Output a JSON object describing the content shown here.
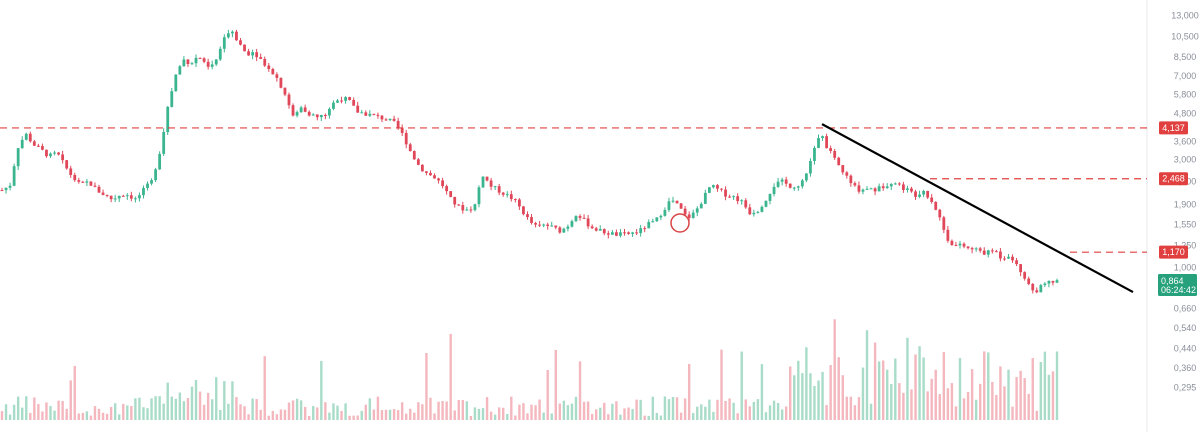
{
  "chart_data": {
    "type": "candlestick",
    "y_scale": "log",
    "y_ticks": [
      "13,000",
      "10,500",
      "8,500",
      "7,000",
      "5,800",
      "4,800",
      "3,600",
      "3,000",
      "2,400",
      "1,900",
      "1,550",
      "1,250",
      "1,000",
      "0,864",
      "0,660",
      "0,540",
      "0,440",
      "0,360",
      "0,295"
    ],
    "y_tick_values": [
      13.0,
      10.5,
      8.5,
      7.0,
      5.8,
      4.8,
      3.6,
      3.0,
      2.4,
      1.9,
      1.55,
      1.25,
      1.0,
      0.864,
      0.66,
      0.54,
      0.44,
      0.36,
      0.295
    ],
    "ylim": [
      0.25,
      14.0
    ],
    "levels": [
      {
        "label": "4,137",
        "value": 4.137,
        "style": "dashed",
        "color": "#e0403f"
      },
      {
        "label": "2,468",
        "value": 2.468,
        "style": "dashed",
        "color": "#e0403f"
      },
      {
        "label": "1,170",
        "value": 1.17,
        "style": "dashed",
        "color": "#e0403f"
      }
    ],
    "current_price": {
      "label": "0,864",
      "countdown": "06:24:42",
      "value": 0.864,
      "color": "#26a17b"
    },
    "trendline": {
      "from": 4.3,
      "to": 0.78,
      "color": "#000000"
    },
    "price_path": [
      [
        0,
        2.2
      ],
      [
        1,
        2.3
      ],
      [
        2,
        3.4
      ],
      [
        3,
        3.9
      ],
      [
        4,
        3.5
      ],
      [
        5,
        3.3
      ],
      [
        6,
        3.1
      ],
      [
        7,
        3.2
      ],
      [
        8,
        2.8
      ],
      [
        9,
        2.5
      ],
      [
        10,
        2.3
      ],
      [
        11,
        2.4
      ],
      [
        12,
        2.2
      ],
      [
        13,
        2.1
      ],
      [
        14,
        2.0
      ],
      [
        15,
        2.1
      ],
      [
        16,
        2.1
      ],
      [
        17,
        2.0
      ],
      [
        18,
        2.2
      ],
      [
        19,
        2.4
      ],
      [
        20,
        3.2
      ],
      [
        21,
        5.0
      ],
      [
        22,
        7.0
      ],
      [
        23,
        8.3
      ],
      [
        24,
        8.0
      ],
      [
        25,
        8.6
      ],
      [
        26,
        7.6
      ],
      [
        27,
        7.9
      ],
      [
        28,
        9.8
      ],
      [
        29,
        11.5
      ],
      [
        30,
        10.0
      ],
      [
        31,
        8.8
      ],
      [
        32,
        9.0
      ],
      [
        33,
        8.2
      ],
      [
        34,
        7.6
      ],
      [
        35,
        6.8
      ],
      [
        36,
        5.8
      ],
      [
        37,
        4.6
      ],
      [
        38,
        5.1
      ],
      [
        39,
        4.8
      ],
      [
        40,
        4.6
      ],
      [
        41,
        4.7
      ],
      [
        42,
        5.3
      ],
      [
        43,
        5.6
      ],
      [
        44,
        5.5
      ],
      [
        45,
        4.9
      ],
      [
        46,
        4.8
      ],
      [
        47,
        4.7
      ],
      [
        48,
        4.6
      ],
      [
        49,
        4.5
      ],
      [
        50,
        4.3
      ],
      [
        51,
        3.8
      ],
      [
        52,
        3.2
      ],
      [
        53,
        2.8
      ],
      [
        54,
        2.6
      ],
      [
        55,
        2.5
      ],
      [
        56,
        2.3
      ],
      [
        57,
        2.0
      ],
      [
        58,
        1.85
      ],
      [
        59,
        1.8
      ],
      [
        60,
        1.85
      ],
      [
        61,
        2.6
      ],
      [
        62,
        2.3
      ],
      [
        63,
        2.2
      ],
      [
        64,
        2.1
      ],
      [
        65,
        2.0
      ],
      [
        66,
        1.8
      ],
      [
        67,
        1.6
      ],
      [
        68,
        1.5
      ],
      [
        69,
        1.55
      ],
      [
        70,
        1.5
      ],
      [
        71,
        1.45
      ],
      [
        72,
        1.55
      ],
      [
        73,
        1.75
      ],
      [
        74,
        1.6
      ],
      [
        75,
        1.5
      ],
      [
        76,
        1.45
      ],
      [
        77,
        1.42
      ],
      [
        78,
        1.4
      ],
      [
        79,
        1.4
      ],
      [
        80,
        1.42
      ],
      [
        81,
        1.45
      ],
      [
        82,
        1.55
      ],
      [
        83,
        1.6
      ],
      [
        84,
        1.8
      ],
      [
        85,
        2.0
      ],
      [
        86,
        1.85
      ],
      [
        87,
        1.65
      ],
      [
        88,
        1.75
      ],
      [
        89,
        2.0
      ],
      [
        90,
        2.3
      ],
      [
        91,
        2.2
      ],
      [
        92,
        2.1
      ],
      [
        93,
        2.05
      ],
      [
        94,
        1.95
      ],
      [
        95,
        1.75
      ],
      [
        96,
        1.8
      ],
      [
        97,
        2.0
      ],
      [
        98,
        2.3
      ],
      [
        99,
        2.4
      ],
      [
        100,
        2.3
      ],
      [
        101,
        2.3
      ],
      [
        102,
        2.5
      ],
      [
        103,
        3.2
      ],
      [
        104,
        3.9
      ],
      [
        105,
        3.3
      ],
      [
        106,
        2.9
      ],
      [
        107,
        2.6
      ],
      [
        108,
        2.3
      ],
      [
        109,
        2.2
      ],
      [
        110,
        2.25
      ],
      [
        111,
        2.2
      ],
      [
        112,
        2.3
      ],
      [
        113,
        2.4
      ],
      [
        114,
        2.3
      ],
      [
        115,
        2.2
      ],
      [
        116,
        2.1
      ],
      [
        117,
        2.2
      ],
      [
        118,
        2.0
      ],
      [
        119,
        1.7
      ],
      [
        120,
        1.35
      ],
      [
        121,
        1.25
      ],
      [
        122,
        1.25
      ],
      [
        123,
        1.2
      ],
      [
        124,
        1.2
      ],
      [
        125,
        1.15
      ],
      [
        126,
        1.2
      ],
      [
        127,
        1.1
      ],
      [
        128,
        1.15
      ],
      [
        129,
        1.0
      ],
      [
        130,
        0.9
      ],
      [
        131,
        0.78
      ],
      [
        132,
        0.82
      ],
      [
        133,
        0.86
      ],
      [
        134,
        0.864
      ]
    ],
    "xlabel": "",
    "ylabel": ""
  }
}
